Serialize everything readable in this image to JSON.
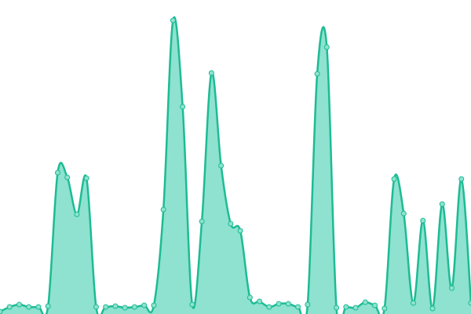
{
  "chart_data": {
    "type": "area",
    "values": [
      3,
      9,
      12,
      9,
      9,
      10,
      180,
      174,
      127,
      173,
      9,
      9,
      10,
      8,
      9,
      11,
      11,
      133,
      374,
      264,
      12,
      118,
      307,
      189,
      115,
      106,
      21,
      16,
      9,
      13,
      13,
      9,
      12,
      306,
      340,
      8,
      9,
      8,
      15,
      11,
      7,
      172,
      128,
      14,
      119,
      7,
      140,
      33,
      172,
      14
    ],
    "ylim": [
      0,
      400
    ],
    "color": "#1dbb94",
    "fill_color": "#8ee2cf",
    "markers": true
  }
}
